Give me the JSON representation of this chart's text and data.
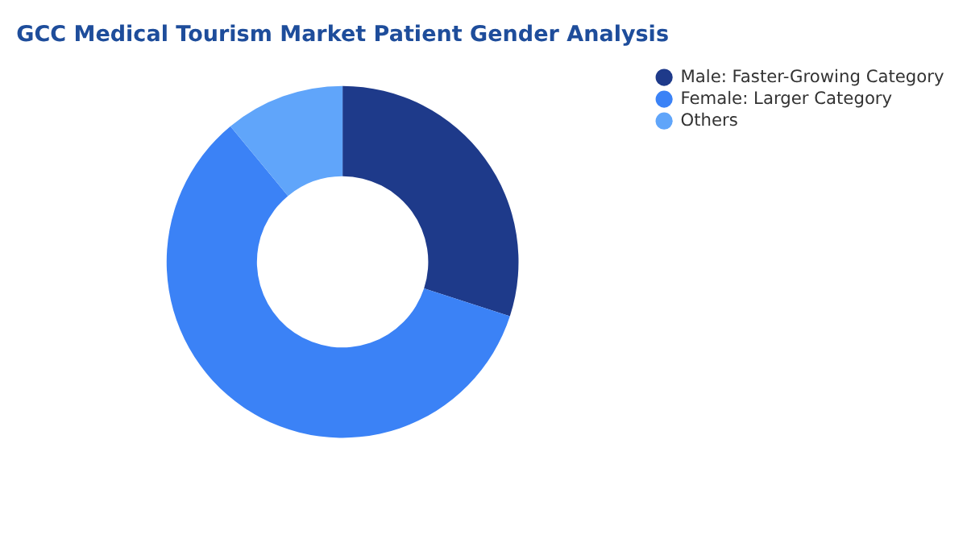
{
  "chart_data": {
    "type": "donut",
    "title": "GCC Medical Tourism Market Patient Gender Analysis",
    "categories": [
      "Male:  Faster-Growing Category",
      "Female:  Larger Category",
      "Others"
    ],
    "values": [
      30,
      59,
      11
    ],
    "colors": [
      "#1e3a8a",
      "#3b82f6",
      "#60a5fa"
    ],
    "legend": "right"
  }
}
